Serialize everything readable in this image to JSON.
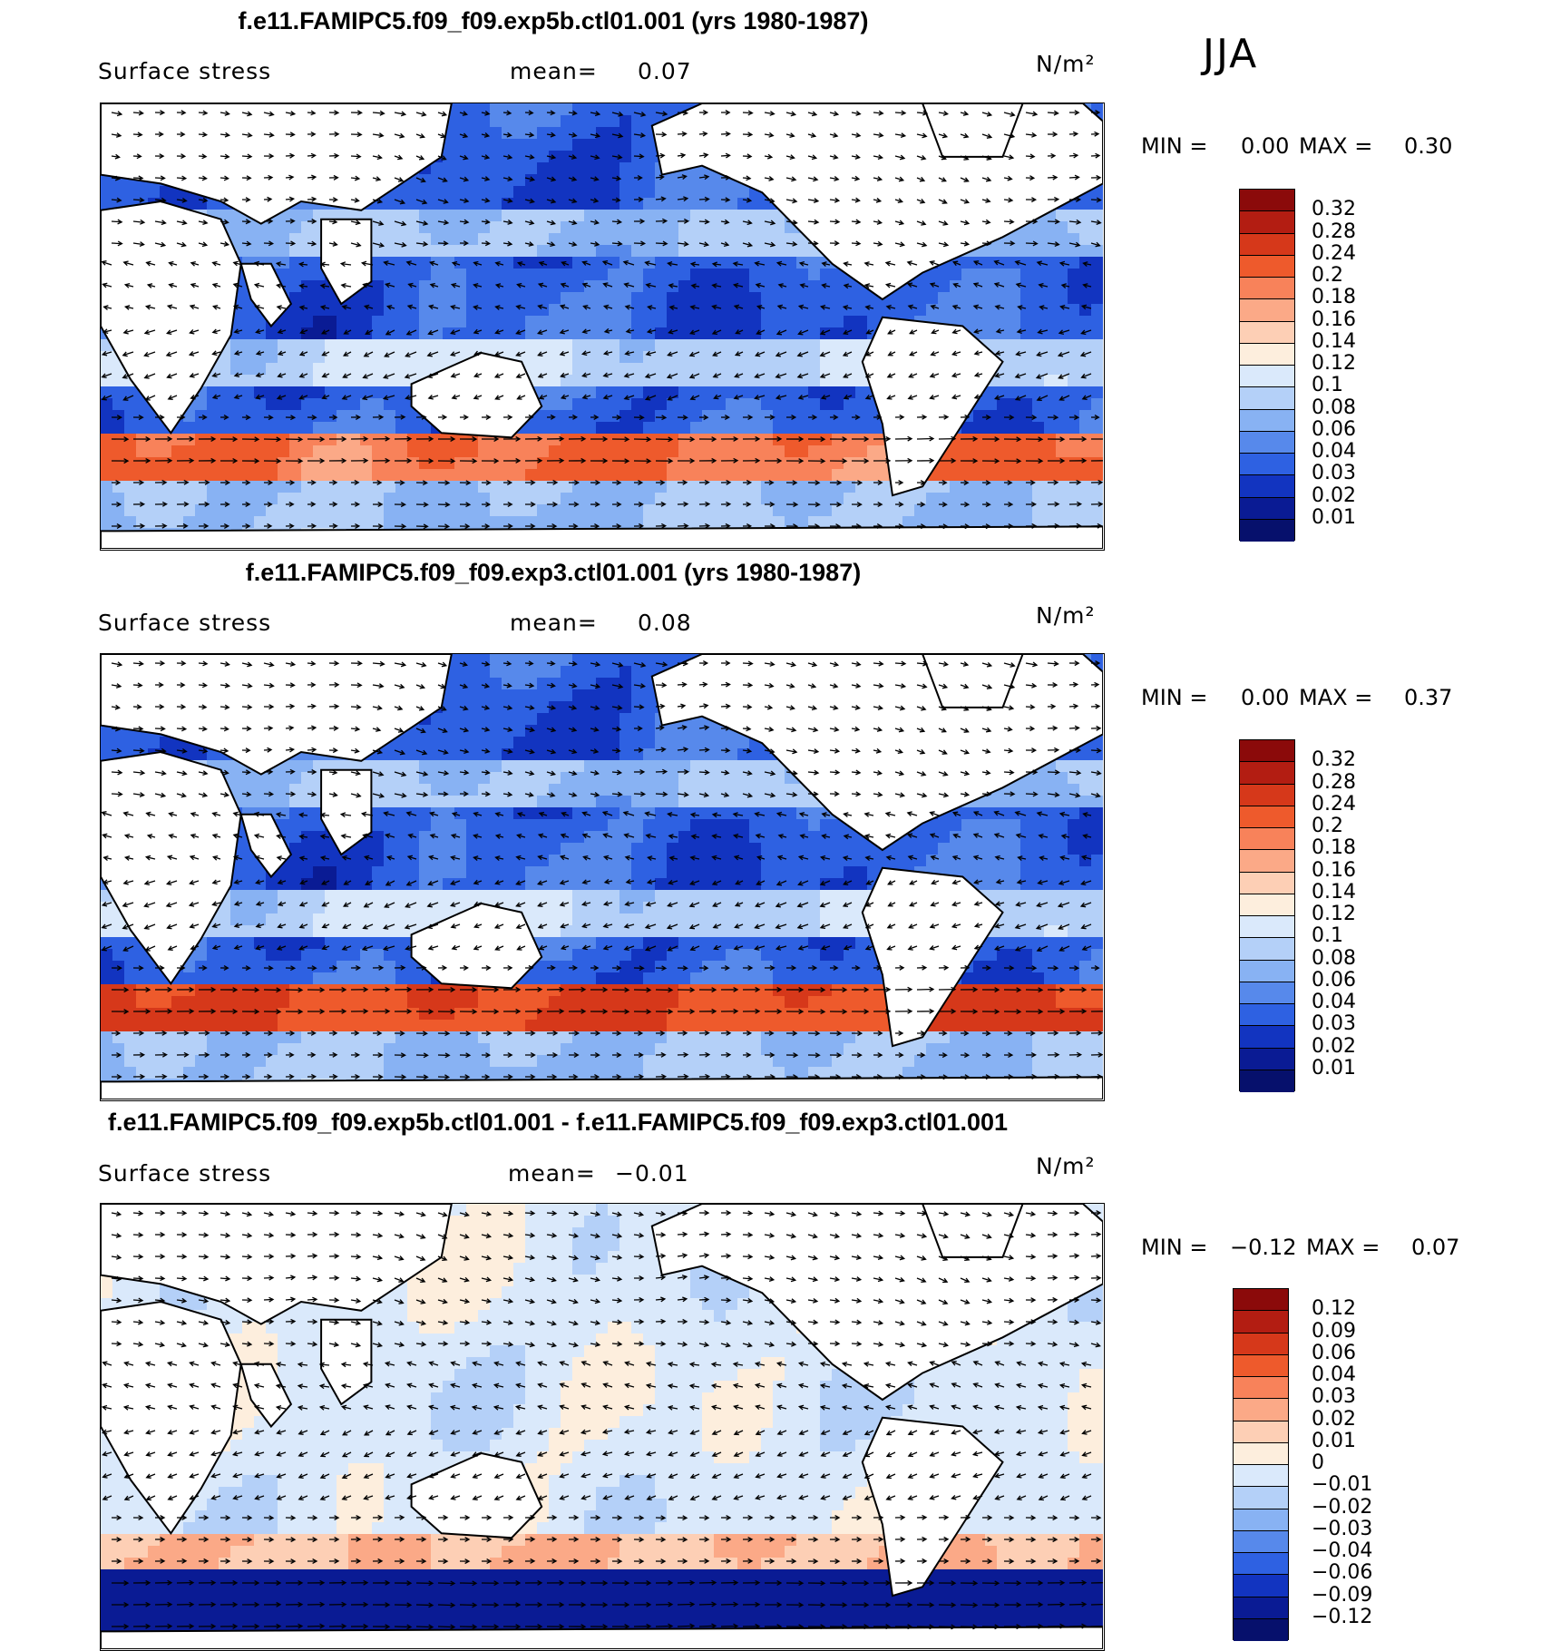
{
  "season": "JJA",
  "panels": [
    {
      "id": "exp5b",
      "title": "f.e11.FAMIPC5.f09_f09.exp5b.ctl01.001 (yrs 1980-1987)",
      "variable": "Surface stress",
      "mean_label": "mean=",
      "mean_value": "0.07",
      "units": "N/m²",
      "min_label": "MIN =",
      "min_value": "0.00",
      "max_label": "MAX =",
      "max_value": "0.30",
      "scale": [
        "0.32",
        "0.28",
        "0.24",
        "0.2",
        "0.18",
        "0.16",
        "0.14",
        "0.12",
        "0.1",
        "0.08",
        "0.06",
        "0.04",
        "0.03",
        "0.02",
        "0.01"
      ],
      "colors": [
        "#8b0a0a",
        "#b31d12",
        "#d6381a",
        "#ee5a2c",
        "#f8825a",
        "#fba987",
        "#fdcfb5",
        "#fdeedd",
        "#dae9fb",
        "#b4d0f8",
        "#88b2f3",
        "#5789eb",
        "#2e61e2",
        "#1234c0",
        "#0a1b94",
        "#06106c"
      ],
      "field": "stress"
    },
    {
      "id": "exp3",
      "title": "f.e11.FAMIPC5.f09_f09.exp3.ctl01.001 (yrs 1980-1987)",
      "variable": "Surface stress",
      "mean_label": "mean=",
      "mean_value": "0.08",
      "units": "N/m²",
      "min_label": "MIN =",
      "min_value": "0.00",
      "max_label": "MAX =",
      "max_value": "0.37",
      "scale": [
        "0.32",
        "0.28",
        "0.24",
        "0.2",
        "0.18",
        "0.16",
        "0.14",
        "0.12",
        "0.1",
        "0.08",
        "0.06",
        "0.04",
        "0.03",
        "0.02",
        "0.01"
      ],
      "colors": [
        "#8b0a0a",
        "#b31d12",
        "#d6381a",
        "#ee5a2c",
        "#f8825a",
        "#fba987",
        "#fdcfb5",
        "#fdeedd",
        "#dae9fb",
        "#b4d0f8",
        "#88b2f3",
        "#5789eb",
        "#2e61e2",
        "#1234c0",
        "#0a1b94",
        "#06106c"
      ],
      "field": "stress_strong"
    },
    {
      "id": "diff",
      "title": "f.e11.FAMIPC5.f09_f09.exp5b.ctl01.001 - f.e11.FAMIPC5.f09_f09.exp3.ctl01.001",
      "variable": "Surface stress",
      "mean_label": "mean=",
      "mean_value": "−0.01",
      "units": "N/m²",
      "min_label": "MIN =",
      "min_value": "−0.12",
      "max_label": "MAX =",
      "max_value": "0.07",
      "scale": [
        "0.12",
        "0.09",
        "0.06",
        "0.04",
        "0.03",
        "0.02",
        "0.01",
        "0",
        "−0.01",
        "−0.02",
        "−0.03",
        "−0.04",
        "−0.06",
        "−0.09",
        "−0.12"
      ],
      "colors": [
        "#8b0a0a",
        "#b31d12",
        "#d6381a",
        "#ee5a2c",
        "#f8825a",
        "#fba987",
        "#fdcfb5",
        "#fdeedd",
        "#dae9fb",
        "#b4d0f8",
        "#88b2f3",
        "#5789eb",
        "#2e61e2",
        "#1234c0",
        "#0a1b94",
        "#06106c"
      ],
      "field": "difference"
    }
  ]
}
